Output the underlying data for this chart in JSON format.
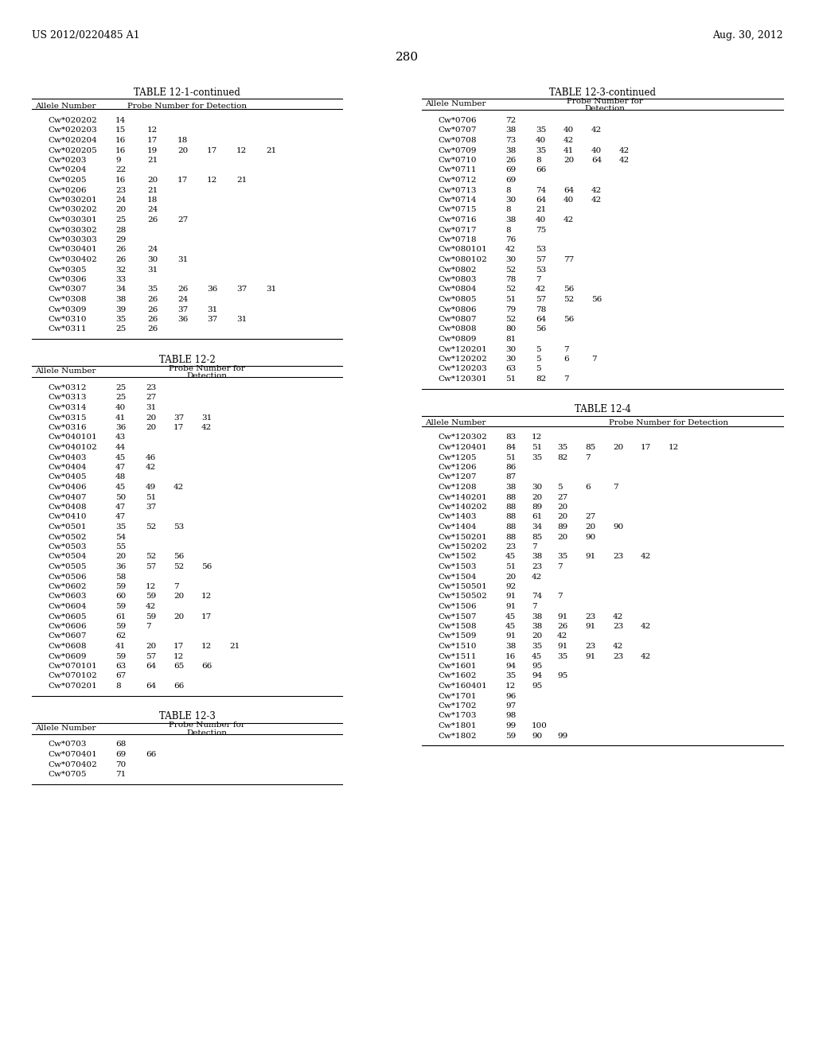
{
  "page_number": "280",
  "patent_left": "US 2012/0220485 A1",
  "patent_right": "Aug. 30, 2012",
  "table1_title": "TABLE 12-1-continued",
  "table1_data": [
    [
      "Cw*020202",
      "14",
      "",
      "",
      "",
      "",
      ""
    ],
    [
      "Cw*020203",
      "15",
      "12",
      "",
      "",
      "",
      ""
    ],
    [
      "Cw*020204",
      "16",
      "17",
      "18",
      "",
      "",
      ""
    ],
    [
      "Cw*020205",
      "16",
      "19",
      "20",
      "17",
      "12",
      "21"
    ],
    [
      "Cw*0203",
      "9",
      "21",
      "",
      "",
      "",
      ""
    ],
    [
      "Cw*0204",
      "22",
      "",
      "",
      "",
      "",
      ""
    ],
    [
      "Cw*0205",
      "16",
      "20",
      "17",
      "12",
      "21",
      ""
    ],
    [
      "Cw*0206",
      "23",
      "21",
      "",
      "",
      "",
      ""
    ],
    [
      "Cw*030201",
      "24",
      "18",
      "",
      "",
      "",
      ""
    ],
    [
      "Cw*030202",
      "20",
      "24",
      "",
      "",
      "",
      ""
    ],
    [
      "Cw*030301",
      "25",
      "26",
      "27",
      "",
      "",
      ""
    ],
    [
      "Cw*030302",
      "28",
      "",
      "",
      "",
      "",
      ""
    ],
    [
      "Cw*030303",
      "29",
      "",
      "",
      "",
      "",
      ""
    ],
    [
      "Cw*030401",
      "26",
      "24",
      "",
      "",
      "",
      ""
    ],
    [
      "Cw*030402",
      "26",
      "30",
      "31",
      "",
      "",
      ""
    ],
    [
      "Cw*0305",
      "32",
      "31",
      "",
      "",
      "",
      ""
    ],
    [
      "Cw*0306",
      "33",
      "",
      "",
      "",
      "",
      ""
    ],
    [
      "Cw*0307",
      "34",
      "35",
      "26",
      "36",
      "37",
      "31"
    ],
    [
      "Cw*0308",
      "38",
      "26",
      "24",
      "",
      "",
      ""
    ],
    [
      "Cw*0309",
      "39",
      "26",
      "37",
      "31",
      "",
      ""
    ],
    [
      "Cw*0310",
      "35",
      "26",
      "36",
      "37",
      "31",
      ""
    ],
    [
      "Cw*0311",
      "25",
      "26",
      "",
      "",
      "",
      ""
    ]
  ],
  "table2_title": "TABLE 12-2",
  "table2_data": [
    [
      "Cw*0312",
      "25",
      "23",
      "",
      "",
      ""
    ],
    [
      "Cw*0313",
      "25",
      "27",
      "",
      "",
      ""
    ],
    [
      "Cw*0314",
      "40",
      "31",
      "",
      "",
      ""
    ],
    [
      "Cw*0315",
      "41",
      "20",
      "37",
      "31",
      ""
    ],
    [
      "Cw*0316",
      "36",
      "20",
      "17",
      "42",
      ""
    ],
    [
      "Cw*040101",
      "43",
      "",
      "",
      "",
      ""
    ],
    [
      "Cw*040102",
      "44",
      "",
      "",
      "",
      ""
    ],
    [
      "Cw*0403",
      "45",
      "46",
      "",
      "",
      ""
    ],
    [
      "Cw*0404",
      "47",
      "42",
      "",
      "",
      ""
    ],
    [
      "Cw*0405",
      "48",
      "",
      "",
      "",
      ""
    ],
    [
      "Cw*0406",
      "45",
      "49",
      "42",
      "",
      ""
    ],
    [
      "Cw*0407",
      "50",
      "51",
      "",
      "",
      ""
    ],
    [
      "Cw*0408",
      "47",
      "37",
      "",
      "",
      ""
    ],
    [
      "Cw*0410",
      "47",
      "",
      "",
      "",
      ""
    ],
    [
      "Cw*0501",
      "35",
      "52",
      "53",
      "",
      ""
    ],
    [
      "Cw*0502",
      "54",
      "",
      "",
      "",
      ""
    ],
    [
      "Cw*0503",
      "55",
      "",
      "",
      "",
      ""
    ],
    [
      "Cw*0504",
      "20",
      "52",
      "56",
      "",
      ""
    ],
    [
      "Cw*0505",
      "36",
      "57",
      "52",
      "56",
      ""
    ],
    [
      "Cw*0506",
      "58",
      "",
      "",
      "",
      ""
    ],
    [
      "Cw*0602",
      "59",
      "12",
      "7",
      "",
      ""
    ],
    [
      "Cw*0603",
      "60",
      "59",
      "20",
      "12",
      ""
    ],
    [
      "Cw*0604",
      "59",
      "42",
      "",
      "",
      ""
    ],
    [
      "Cw*0605",
      "61",
      "59",
      "20",
      "17",
      ""
    ],
    [
      "Cw*0606",
      "59",
      "7",
      "",
      "",
      ""
    ],
    [
      "Cw*0607",
      "62",
      "",
      "",
      "",
      ""
    ],
    [
      "Cw*0608",
      "41",
      "20",
      "17",
      "12",
      "21"
    ],
    [
      "Cw*0609",
      "59",
      "57",
      "12",
      "",
      ""
    ],
    [
      "Cw*070101",
      "63",
      "64",
      "65",
      "66",
      ""
    ],
    [
      "Cw*070102",
      "67",
      "",
      "",
      "",
      ""
    ],
    [
      "Cw*070201",
      "8",
      "64",
      "66",
      "",
      ""
    ]
  ],
  "table3_title": "TABLE 12-3",
  "table3_data": [
    [
      "Cw*0703",
      "68",
      "",
      "",
      "",
      ""
    ],
    [
      "Cw*070401",
      "69",
      "66",
      "",
      "",
      ""
    ],
    [
      "Cw*070402",
      "70",
      "",
      "",
      "",
      ""
    ],
    [
      "Cw*0705",
      "71",
      "",
      "",
      "",
      ""
    ]
  ],
  "table3b_title": "TABLE 12-3-continued",
  "table3b_data": [
    [
      "Cw*0706",
      "72",
      "",
      "",
      "",
      ""
    ],
    [
      "Cw*0707",
      "38",
      "35",
      "40",
      "42",
      ""
    ],
    [
      "Cw*0708",
      "73",
      "40",
      "42",
      "",
      ""
    ],
    [
      "Cw*0709",
      "38",
      "35",
      "41",
      "40",
      "42"
    ],
    [
      "Cw*0710",
      "26",
      "8",
      "20",
      "64",
      "42"
    ],
    [
      "Cw*0711",
      "69",
      "66",
      "",
      "",
      ""
    ],
    [
      "Cw*0712",
      "69",
      "",
      "",
      "",
      ""
    ],
    [
      "Cw*0713",
      "8",
      "74",
      "64",
      "42",
      ""
    ],
    [
      "Cw*0714",
      "30",
      "64",
      "40",
      "42",
      ""
    ],
    [
      "Cw*0715",
      "8",
      "21",
      "",
      "",
      ""
    ],
    [
      "Cw*0716",
      "38",
      "40",
      "42",
      "",
      ""
    ],
    [
      "Cw*0717",
      "8",
      "75",
      "",
      "",
      ""
    ],
    [
      "Cw*0718",
      "76",
      "",
      "",
      "",
      ""
    ],
    [
      "Cw*080101",
      "42",
      "53",
      "",
      "",
      ""
    ],
    [
      "Cw*080102",
      "30",
      "57",
      "77",
      "",
      ""
    ],
    [
      "Cw*0802",
      "52",
      "53",
      "",
      "",
      ""
    ],
    [
      "Cw*0803",
      "78",
      "7",
      "",
      "",
      ""
    ],
    [
      "Cw*0804",
      "52",
      "42",
      "56",
      "",
      ""
    ],
    [
      "Cw*0805",
      "51",
      "57",
      "52",
      "56",
      ""
    ],
    [
      "Cw*0806",
      "79",
      "78",
      "",
      "",
      ""
    ],
    [
      "Cw*0807",
      "52",
      "64",
      "56",
      "",
      ""
    ],
    [
      "Cw*0808",
      "80",
      "56",
      "",
      "",
      ""
    ],
    [
      "Cw*0809",
      "81",
      "",
      "",
      "",
      ""
    ],
    [
      "Cw*120201",
      "30",
      "5",
      "7",
      "",
      ""
    ],
    [
      "Cw*120202",
      "30",
      "5",
      "6",
      "7",
      ""
    ],
    [
      "Cw*120203",
      "63",
      "5",
      "",
      "",
      ""
    ],
    [
      "Cw*120301",
      "51",
      "82",
      "7",
      "",
      ""
    ]
  ],
  "table4_title": "TABLE 12-4",
  "table4_data": [
    [
      "Cw*120302",
      "83",
      "12",
      "",
      "",
      "",
      "",
      ""
    ],
    [
      "Cw*120401",
      "84",
      "51",
      "35",
      "85",
      "20",
      "17",
      "12"
    ],
    [
      "Cw*1205",
      "51",
      "35",
      "82",
      "7",
      "",
      "",
      ""
    ],
    [
      "Cw*1206",
      "86",
      "",
      "",
      "",
      "",
      "",
      ""
    ],
    [
      "Cw*1207",
      "87",
      "",
      "",
      "",
      "",
      "",
      ""
    ],
    [
      "Cw*1208",
      "38",
      "30",
      "5",
      "6",
      "7",
      "",
      ""
    ],
    [
      "Cw*140201",
      "88",
      "20",
      "27",
      "",
      "",
      "",
      ""
    ],
    [
      "Cw*140202",
      "88",
      "89",
      "20",
      "",
      "",
      "",
      ""
    ],
    [
      "Cw*1403",
      "88",
      "61",
      "20",
      "27",
      "",
      "",
      ""
    ],
    [
      "Cw*1404",
      "88",
      "34",
      "89",
      "20",
      "90",
      "",
      ""
    ],
    [
      "Cw*150201",
      "88",
      "85",
      "20",
      "90",
      "",
      "",
      ""
    ],
    [
      "Cw*150202",
      "23",
      "7",
      "",
      "",
      "",
      "",
      ""
    ],
    [
      "Cw*1502",
      "45",
      "38",
      "35",
      "91",
      "23",
      "42",
      ""
    ],
    [
      "Cw*1503",
      "51",
      "23",
      "7",
      "",
      "",
      "",
      ""
    ],
    [
      "Cw*1504",
      "20",
      "42",
      "",
      "",
      "",
      "",
      ""
    ],
    [
      "Cw*150501",
      "92",
      "",
      "",
      "",
      "",
      "",
      ""
    ],
    [
      "Cw*150502",
      "91",
      "74",
      "7",
      "",
      "",
      "",
      ""
    ],
    [
      "Cw*1506",
      "91",
      "7",
      "",
      "",
      "",
      "",
      ""
    ],
    [
      "Cw*1507",
      "45",
      "38",
      "91",
      "23",
      "42",
      "",
      ""
    ],
    [
      "Cw*1508",
      "45",
      "38",
      "26",
      "91",
      "23",
      "42",
      ""
    ],
    [
      "Cw*1509",
      "91",
      "20",
      "42",
      "",
      "",
      "",
      ""
    ],
    [
      "Cw*1510",
      "38",
      "35",
      "91",
      "23",
      "42",
      "",
      ""
    ],
    [
      "Cw*1511",
      "16",
      "45",
      "35",
      "91",
      "23",
      "42",
      ""
    ],
    [
      "Cw*1601",
      "94",
      "95",
      "",
      "",
      "",
      "",
      ""
    ],
    [
      "Cw*1602",
      "35",
      "94",
      "95",
      "",
      "",
      "",
      ""
    ],
    [
      "Cw*160401",
      "12",
      "95",
      "",
      "",
      "",
      "",
      ""
    ],
    [
      "Cw*1701",
      "96",
      "",
      "",
      "",
      "",
      "",
      ""
    ],
    [
      "Cw*1702",
      "97",
      "",
      "",
      "",
      "",
      "",
      ""
    ],
    [
      "Cw*1703",
      "98",
      "",
      "",
      "",
      "",
      "",
      ""
    ],
    [
      "Cw*1801",
      "99",
      "100",
      "",
      "",
      "",
      "",
      ""
    ],
    [
      "Cw*1802",
      "59",
      "90",
      "99",
      "",
      "",
      "",
      ""
    ]
  ]
}
